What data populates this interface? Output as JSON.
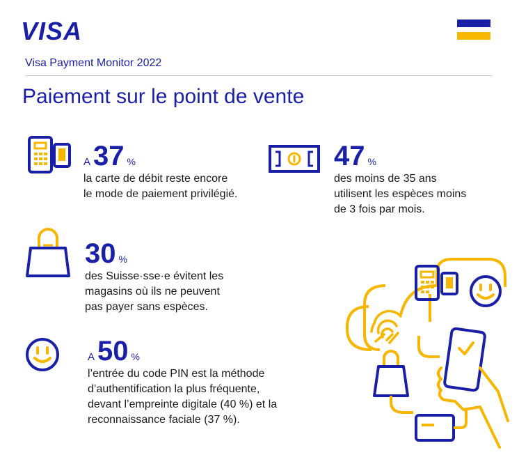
{
  "brand": {
    "logo_text": "VISA"
  },
  "header": {
    "subtitle": "Visa Payment Monitor 2022",
    "title": "Paiement sur le point de vente"
  },
  "stats": [
    {
      "prefix": "A",
      "value": "37",
      "unit": "%",
      "text": "la carte de débit reste encore\nle mode de paiement privilégié."
    },
    {
      "prefix": "",
      "value": "47",
      "unit": "%",
      "text": "des moins de 35 ans\nutilisent les espèces moins\nde 3 fois par mois."
    },
    {
      "prefix": "",
      "value": "30",
      "unit": "%",
      "text": "des Suisse·sse·e évitent les\nmagasins où ils ne peuvent\npas payer sans espèces."
    },
    {
      "prefix": "A",
      "value": "50",
      "unit": "%",
      "text": "l’entrée du code PIN est la méthode\nd’authentification la plus fréquente,\ndevant l’empreinte digitale (40 %) et la\nreconnaissance faciale (37 %)."
    }
  ],
  "icons": [
    "card-terminal-icon",
    "banknote-icon",
    "shopping-bag-icon",
    "smiley-icon",
    "payment-illustration"
  ],
  "colors": {
    "brand_blue": "#1a1fa7",
    "accent_yellow": "#f7b600",
    "divider": "#c9c9c9"
  }
}
